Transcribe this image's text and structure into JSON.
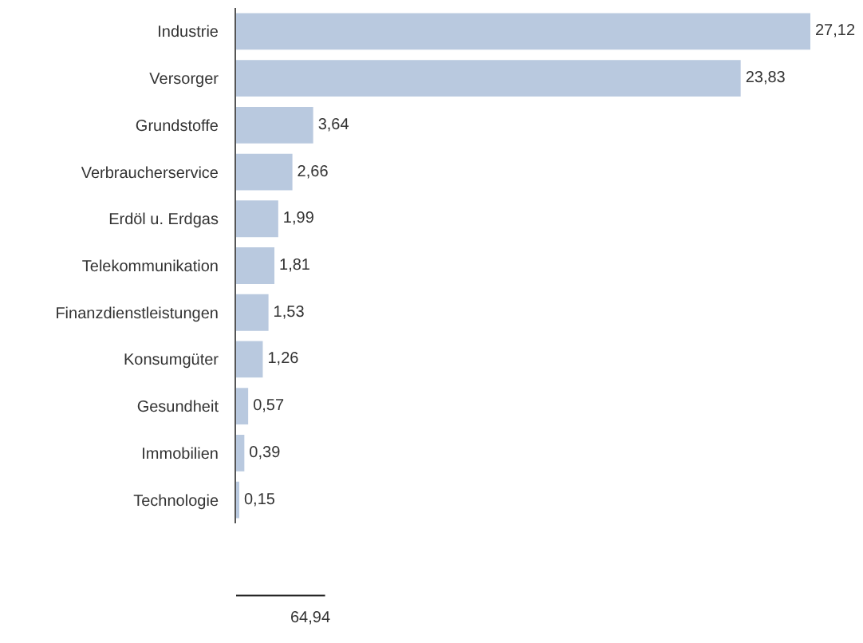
{
  "chart_data": {
    "type": "bar",
    "orientation": "horizontal",
    "categories": [
      "Industrie",
      "Versorger",
      "Grundstoffe",
      "Verbraucherservice",
      "Erdöl u. Erdgas",
      "Telekommunikation",
      "Finanzdienstleistungen",
      "Konsumgüter",
      "Gesundheit",
      "Immobilien",
      "Technologie"
    ],
    "values": [
      27.12,
      23.83,
      3.64,
      2.66,
      1.99,
      1.81,
      1.53,
      1.26,
      0.57,
      0.39,
      0.15
    ],
    "value_labels": [
      "27,12",
      "23,83",
      "3,64",
      "2,66",
      "1,99",
      "1,81",
      "1,53",
      "1,26",
      "0,57",
      "0,39",
      "0,15"
    ],
    "color": "#b9c9df",
    "annotations": [
      "64,94"
    ],
    "legend": false
  }
}
